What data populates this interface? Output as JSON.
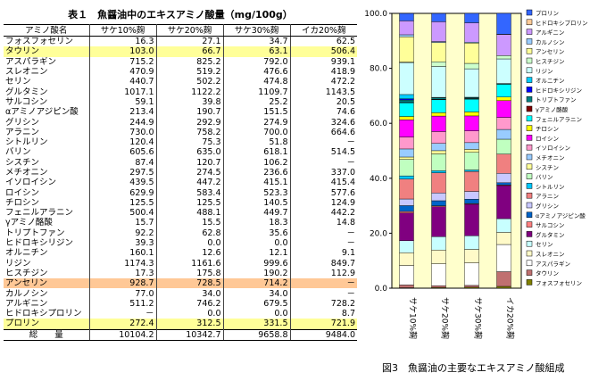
{
  "table": {
    "title": "表１　魚醤油中のエキスアミノ酸量（mg/100g）",
    "headers": [
      "アミノ酸名",
      "サケ10%麹",
      "サケ20%麹",
      "サケ30%麹",
      "イカ20%麹"
    ],
    "rows": [
      {
        "name": "フォスフォセリン",
        "v": [
          "16.3",
          "27.1",
          "34.7",
          "62.5"
        ],
        "hl": ""
      },
      {
        "name": "タウリン",
        "v": [
          "103.0",
          "66.7",
          "63.1",
          "506.4"
        ],
        "hl": "y"
      },
      {
        "name": "アスパラギン",
        "v": [
          "715.2",
          "825.2",
          "792.0",
          "939.1"
        ],
        "hl": ""
      },
      {
        "name": "スレオニン",
        "v": [
          "470.9",
          "519.2",
          "476.6",
          "418.9"
        ],
        "hl": ""
      },
      {
        "name": "セリン",
        "v": [
          "440.7",
          "502.2",
          "474.8",
          "472.2"
        ],
        "hl": ""
      },
      {
        "name": "グルタミン",
        "v": [
          "1017.1",
          "1122.2",
          "1109.7",
          "1143.5"
        ],
        "hl": ""
      },
      {
        "name": "サルコシン",
        "v": [
          "59.1",
          "39.8",
          "25.2",
          "20.5"
        ],
        "hl": ""
      },
      {
        "name": "αアミノアジピン酸",
        "v": [
          "213.4",
          "190.7",
          "151.5",
          "74.6"
        ],
        "hl": ""
      },
      {
        "name": "グリシン",
        "v": [
          "244.9",
          "292.9",
          "274.9",
          "324.6"
        ],
        "hl": ""
      },
      {
        "name": "アラニン",
        "v": [
          "730.0",
          "758.2",
          "700.0",
          "664.6"
        ],
        "hl": ""
      },
      {
        "name": "シトルリン",
        "v": [
          "120.4",
          "75.3",
          "51.8",
          "－"
        ],
        "hl": ""
      },
      {
        "name": "バリン",
        "v": [
          "605.6",
          "635.0",
          "618.1",
          "514.5"
        ],
        "hl": ""
      },
      {
        "name": "シスチン",
        "v": [
          "87.4",
          "120.7",
          "106.2",
          "－"
        ],
        "hl": ""
      },
      {
        "name": "メチオニン",
        "v": [
          "297.5",
          "274.5",
          "236.6",
          "337.0"
        ],
        "hl": ""
      },
      {
        "name": "イソロイシン",
        "v": [
          "439.5",
          "447.2",
          "415.1",
          "415.4"
        ],
        "hl": ""
      },
      {
        "name": "ロイシン",
        "v": [
          "629.9",
          "583.4",
          "523.3",
          "577.6"
        ],
        "hl": ""
      },
      {
        "name": "チロシン",
        "v": [
          "125.5",
          "125.5",
          "140.5",
          "124.9"
        ],
        "hl": ""
      },
      {
        "name": "フェニルアラニン",
        "v": [
          "500.4",
          "488.1",
          "449.7",
          "442.2"
        ],
        "hl": ""
      },
      {
        "name": "γアミノ酪酸",
        "v": [
          "15.7",
          "15.5",
          "18.3",
          "14.8"
        ],
        "hl": ""
      },
      {
        "name": "トリプトファン",
        "v": [
          "92.2",
          "62.8",
          "35.6",
          "－"
        ],
        "hl": ""
      },
      {
        "name": "ヒドロキシリジン",
        "v": [
          "39.3",
          "0.0",
          "0.0",
          "－"
        ],
        "hl": ""
      },
      {
        "name": "オルニチン",
        "v": [
          "160.1",
          "12.6",
          "12.1",
          "9.1"
        ],
        "hl": ""
      },
      {
        "name": "リジン",
        "v": [
          "1174.3",
          "1161.6",
          "999.6",
          "849.7"
        ],
        "hl": ""
      },
      {
        "name": "ヒスチジン",
        "v": [
          "17.3",
          "175.8",
          "190.2",
          "112.9"
        ],
        "hl": ""
      },
      {
        "name": "アンセリン",
        "v": [
          "928.7",
          "728.5",
          "714.2",
          "－"
        ],
        "hl": "o"
      },
      {
        "name": "カルノシン",
        "v": [
          "77.0",
          "34.0",
          "34.0",
          "－"
        ],
        "hl": ""
      },
      {
        "name": "アルギニン",
        "v": [
          "511.2",
          "746.2",
          "679.5",
          "728.2"
        ],
        "hl": ""
      },
      {
        "name": "ヒドロキシプロリン",
        "v": [
          "－",
          "0.0",
          "0.0",
          "8.7"
        ],
        "hl": ""
      },
      {
        "name": "プロリン",
        "v": [
          "272.4",
          "312.5",
          "331.5",
          "721.9"
        ],
        "hl": "y"
      }
    ],
    "total": {
      "name": "総　　量",
      "v": [
        "10104.2",
        "10342.7",
        "9658.8",
        "9484.0"
      ]
    }
  },
  "chart_data": {
    "type": "bar",
    "stacked": true,
    "normalized_percent": true,
    "ylim": [
      0,
      100
    ],
    "yticks": [
      "0.0",
      "20.0",
      "40.0",
      "60.0",
      "80.0",
      "100.0"
    ],
    "categories": [
      "サケ10%麹",
      "サケ20%麹",
      "サケ30%麹",
      "イカ20%麹"
    ],
    "caption": "図3　魚醤油の主要なエキスアミノ酸組成",
    "series": [
      {
        "name": "フォスフォセリン",
        "color": "#808000",
        "values": [
          0.16,
          0.26,
          0.36,
          0.66
        ]
      },
      {
        "name": "タウリン",
        "color": "#c07070",
        "values": [
          1.02,
          0.64,
          0.65,
          5.34
        ]
      },
      {
        "name": "アスパラギン",
        "color": "#ffffff",
        "values": [
          7.08,
          7.98,
          8.2,
          9.9
        ]
      },
      {
        "name": "スレオニン",
        "color": "#fffac8",
        "values": [
          4.66,
          5.02,
          4.93,
          4.42
        ]
      },
      {
        "name": "セリン",
        "color": "#c8ffff",
        "values": [
          4.36,
          4.86,
          4.92,
          4.98
        ]
      },
      {
        "name": "グルタミン",
        "color": "#800080",
        "values": [
          10.07,
          10.85,
          11.49,
          12.06
        ]
      },
      {
        "name": "サルコシン",
        "color": "#ff8080",
        "values": [
          0.58,
          0.38,
          0.26,
          0.22
        ]
      },
      {
        "name": "αアミノアジピン酸",
        "color": "#0064c8",
        "values": [
          2.11,
          1.84,
          1.57,
          0.79
        ]
      },
      {
        "name": "グリシン",
        "color": "#c8c8ff",
        "values": [
          2.42,
          2.83,
          2.85,
          3.42
        ]
      },
      {
        "name": "アラニン",
        "color": "#f08080",
        "values": [
          7.22,
          7.33,
          7.25,
          7.01
        ]
      },
      {
        "name": "シトルリン",
        "color": "#00c8ff",
        "values": [
          1.19,
          0.73,
          0.54,
          0.0
        ]
      },
      {
        "name": "バリン",
        "color": "#c0ffc0",
        "values": [
          5.99,
          6.14,
          6.4,
          5.42
        ]
      },
      {
        "name": "シスチン",
        "color": "#ffff99",
        "values": [
          0.87,
          1.17,
          1.1,
          0.0
        ]
      },
      {
        "name": "メチオニン",
        "color": "#99ccff",
        "values": [
          2.94,
          2.65,
          2.45,
          3.55
        ]
      },
      {
        "name": "イソロイシン",
        "color": "#ff99cc",
        "values": [
          4.35,
          4.32,
          4.3,
          4.38
        ]
      },
      {
        "name": "ロイシン",
        "color": "#ff00ff",
        "values": [
          6.23,
          5.64,
          5.42,
          6.09
        ]
      },
      {
        "name": "チロシン",
        "color": "#ffff00",
        "values": [
          1.24,
          1.21,
          1.45,
          1.32
        ]
      },
      {
        "name": "フェニルアラニン",
        "color": "#00ffff",
        "values": [
          4.95,
          4.72,
          4.66,
          4.66
        ]
      },
      {
        "name": "γアミノ酪酸",
        "color": "#800000",
        "values": [
          0.16,
          0.15,
          0.19,
          0.16
        ]
      },
      {
        "name": "トリプトファン",
        "color": "#008080",
        "values": [
          0.91,
          0.61,
          0.37,
          0.0
        ]
      },
      {
        "name": "ヒドロキシリジン",
        "color": "#0000ff",
        "values": [
          0.39,
          0.0,
          0.0,
          0.0
        ]
      },
      {
        "name": "オルニチン",
        "color": "#00ccff",
        "values": [
          1.58,
          0.12,
          0.13,
          0.1
        ]
      },
      {
        "name": "リジン",
        "color": "#ccffff",
        "values": [
          11.62,
          11.23,
          10.35,
          8.96
        ]
      },
      {
        "name": "ヒスチジン",
        "color": "#ccffcc",
        "values": [
          0.17,
          1.7,
          1.97,
          1.19
        ]
      },
      {
        "name": "アンセリン",
        "color": "#ffff99",
        "values": [
          9.19,
          7.04,
          7.39,
          0.0
        ]
      },
      {
        "name": "カルノシン",
        "color": "#99ccff",
        "values": [
          0.76,
          0.33,
          0.35,
          0.0
        ]
      },
      {
        "name": "アルギニン",
        "color": "#cc99ff",
        "values": [
          5.06,
          7.21,
          7.03,
          7.68
        ]
      },
      {
        "name": "ヒドロキシプロリン",
        "color": "#ffcc99",
        "values": [
          0.0,
          0.0,
          0.0,
          0.09
        ]
      },
      {
        "name": "プロリン",
        "color": "#3366ff",
        "values": [
          2.7,
          3.02,
          3.43,
          7.61
        ]
      }
    ],
    "legend_order_top_to_bottom": [
      "プロリン",
      "ヒドロキシプロリン",
      "アルギニン",
      "カルノシン",
      "アンセリン",
      "ヒスチジン",
      "リジン",
      "オルニチン",
      "ヒドロキシリジン",
      "トリプトファン",
      "γアミノ酪酸",
      "フェニルアラニン",
      "チロシン",
      "ロイシン",
      "イソロイシン",
      "メチオニン",
      "シスチン",
      "バリン",
      "シトルリン",
      "アラニン",
      "グリシン",
      "αアミノアジピン酸",
      "サルコシン",
      "グルタミン",
      "セリン",
      "スレオニン",
      "アスパラギン",
      "タウリン",
      "フォスフォセリン"
    ]
  }
}
